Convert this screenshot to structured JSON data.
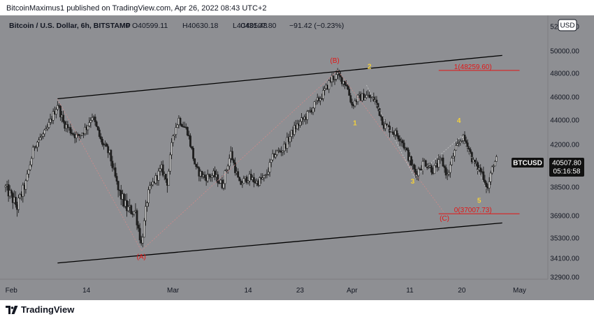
{
  "header": {
    "published_text": "BitcoinMaximus1 published on TradingView.com, Apr 26, 2022 08:43 UTC+2"
  },
  "legend": {
    "symbol_desc": "Bitcoin / U.S. Dollar, 6h, BITSTAMP",
    "open": "O40599.11",
    "high": "H40630.18",
    "low": "L40431.48",
    "close": "C40507.80",
    "change": "−91.42 (−0.23%)"
  },
  "currency_button": "USD",
  "footer": {
    "brand": "TradingView"
  },
  "colors": {
    "plot_bg": "#8e8f93",
    "text_dark": "#131722",
    "red": "#e31515",
    "yellow": "#f3d03b",
    "candle": "#1e1e1e",
    "badge_bg": "#111111"
  },
  "chart_data": {
    "type": "candlestick",
    "title": "Bitcoin / U.S. Dollar, 6h, BITSTAMP",
    "ylim": [
      32300,
      52600
    ],
    "y_ticks": [
      {
        "value": 52000,
        "label": "52000.00"
      },
      {
        "value": 50000,
        "label": "50000.00"
      },
      {
        "value": 48000,
        "label": "48000.00"
      },
      {
        "value": 46000,
        "label": "46000.00"
      },
      {
        "value": 44000,
        "label": "44000.00"
      },
      {
        "value": 42000,
        "label": "42000.00"
      },
      {
        "value": 38500,
        "label": "38500.00"
      },
      {
        "value": 36900,
        "label": "36900.00"
      },
      {
        "value": 35300,
        "label": "35300.00"
      },
      {
        "value": 34100,
        "label": "34100.00"
      },
      {
        "value": 32900,
        "label": "32900.00"
      }
    ],
    "x_ticks": [
      {
        "day": 1,
        "label": "Feb"
      },
      {
        "day": 14,
        "label": "14"
      },
      {
        "day": 29,
        "label": "Mar"
      },
      {
        "day": 42,
        "label": "14"
      },
      {
        "day": 51,
        "label": "23"
      },
      {
        "day": 60,
        "label": "Apr"
      },
      {
        "day": 70,
        "label": "11"
      },
      {
        "day": 79,
        "label": "20"
      },
      {
        "day": 89,
        "label": "May"
      }
    ],
    "price_path": [
      [
        0,
        38500
      ],
      [
        2,
        37400
      ],
      [
        3.5,
        38800
      ],
      [
        5,
        42000
      ],
      [
        7,
        43000
      ],
      [
        8.5,
        44800
      ],
      [
        9,
        45400
      ],
      [
        10,
        43800
      ],
      [
        11.5,
        43000
      ],
      [
        12.5,
        42600
      ],
      [
        14,
        43400
      ],
      [
        15,
        44400
      ],
      [
        16.5,
        42300
      ],
      [
        18,
        41200
      ],
      [
        19.5,
        38300
      ],
      [
        21,
        37300
      ],
      [
        22.5,
        37100
      ],
      [
        23.5,
        34900
      ],
      [
        24.5,
        37800
      ],
      [
        25.5,
        38800
      ],
      [
        27,
        40000
      ],
      [
        28,
        38900
      ],
      [
        29,
        42800
      ],
      [
        30,
        44100
      ],
      [
        31.5,
        43100
      ],
      [
        33,
        39900
      ],
      [
        34.5,
        39300
      ],
      [
        36,
        39500
      ],
      [
        37.5,
        38700
      ],
      [
        39,
        41300
      ],
      [
        40.5,
        38700
      ],
      [
        42,
        39300
      ],
      [
        43.5,
        38900
      ],
      [
        45,
        39300
      ],
      [
        46.5,
        41200
      ],
      [
        48,
        41600
      ],
      [
        50,
        43300
      ],
      [
        52,
        44300
      ],
      [
        53.5,
        45300
      ],
      [
        55,
        46300
      ],
      [
        56.5,
        47600
      ],
      [
        57.5,
        47800
      ],
      [
        59,
        47100
      ],
      [
        60,
        45300
      ],
      [
        61,
        45900
      ],
      [
        62.5,
        46100
      ],
      [
        64,
        45700
      ],
      [
        65.5,
        43600
      ],
      [
        67,
        43100
      ],
      [
        68.5,
        42500
      ],
      [
        70,
        40700
      ],
      [
        71,
        39600
      ],
      [
        72.5,
        40600
      ],
      [
        74,
        39900
      ],
      [
        75.5,
        40700
      ],
      [
        76.5,
        39400
      ],
      [
        77.5,
        41100
      ],
      [
        79,
        42600
      ],
      [
        80,
        42000
      ],
      [
        81,
        40500
      ],
      [
        82.5,
        39700
      ],
      [
        83.5,
        38400
      ],
      [
        84.5,
        40500
      ],
      [
        85,
        40700
      ]
    ],
    "current_price": {
      "value": 40507.8,
      "label": "40507.80",
      "countdown": "05:16:58",
      "symbol": "BTCUSD"
    },
    "channel_lines": [
      {
        "x1": 9,
        "y1": 45850,
        "x2": 86,
        "y2": 49600
      },
      {
        "x1": 9,
        "y1": 33800,
        "x2": 86,
        "y2": 36380
      }
    ],
    "wave_labels": [
      {
        "label": "(A)",
        "day": 23.5,
        "value": 34050,
        "color": "red"
      },
      {
        "label": "(B)",
        "day": 57,
        "value": 48950,
        "color": "red"
      },
      {
        "label": "(C)",
        "day": 76,
        "value": 36560,
        "color": "red"
      },
      {
        "label": "1",
        "day": 60.5,
        "value": 43580,
        "color": "yellow"
      },
      {
        "label": "2",
        "day": 63,
        "value": 48400,
        "color": "yellow"
      },
      {
        "label": "3",
        "day": 70.5,
        "value": 38800,
        "color": "yellow"
      },
      {
        "label": "4",
        "day": 78.5,
        "value": 43780,
        "color": "yellow"
      },
      {
        "label": "5",
        "day": 82,
        "value": 37620,
        "color": "yellow"
      }
    ],
    "fib_levels": [
      {
        "label": "1(48259.60)",
        "value": 48259.6,
        "day_start": 75,
        "day_end": 89
      },
      {
        "label": "0(37007.73)",
        "value": 37007.73,
        "day_start": 75,
        "day_end": 89
      }
    ]
  }
}
